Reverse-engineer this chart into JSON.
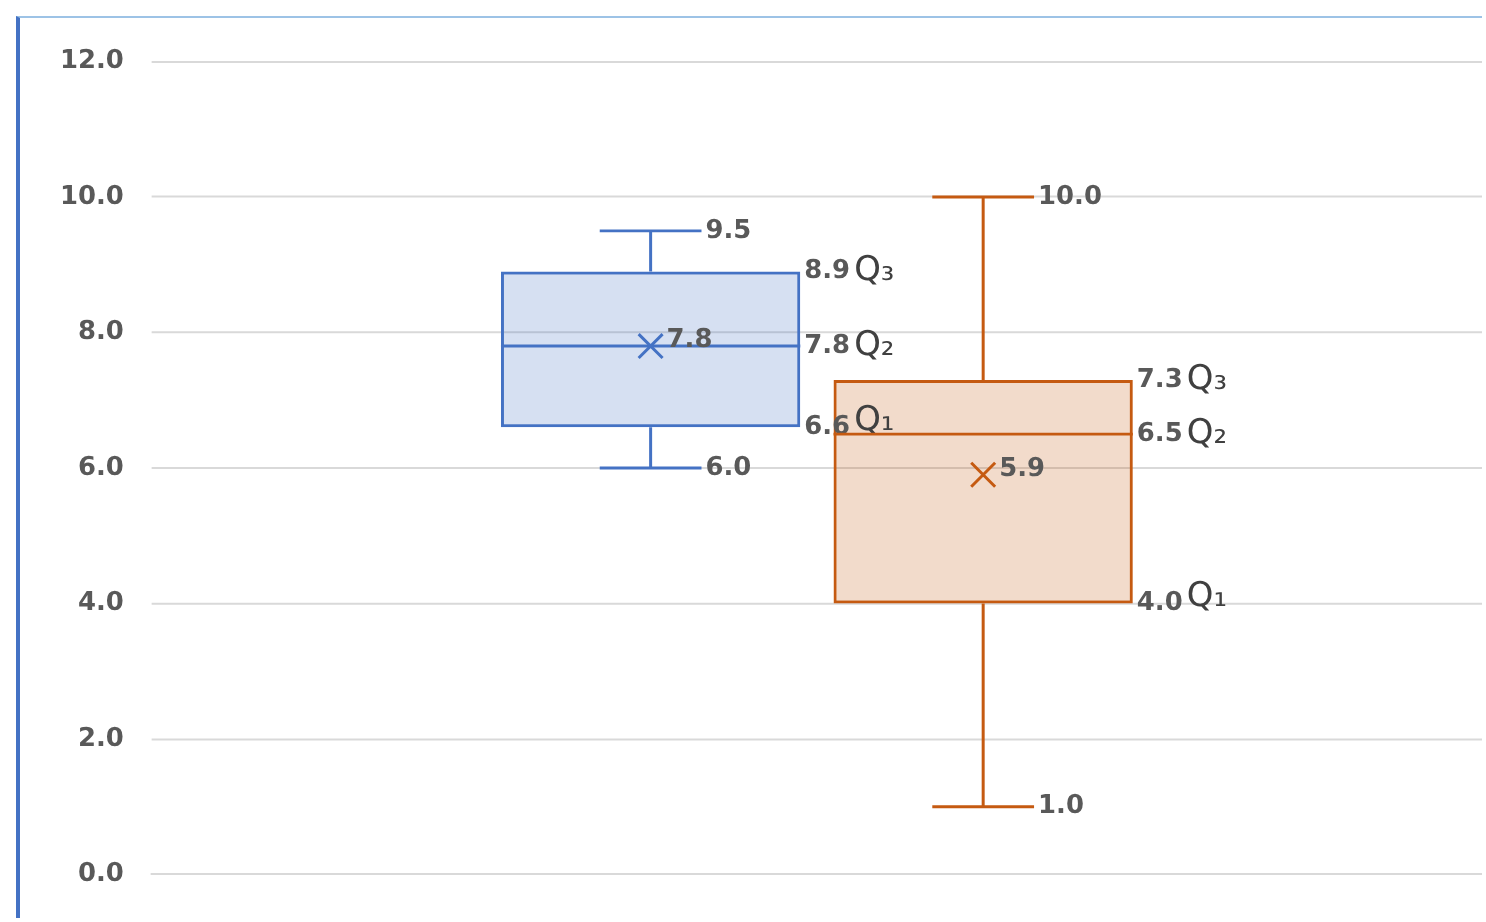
{
  "chart_data": {
    "type": "box",
    "categories": [
      null
    ],
    "series": [
      {
        "color": "#4472c4",
        "boxes": [
          {
            "low": 6.0,
            "q1": 6.6,
            "median": 7.8,
            "q3": 8.9,
            "high": 9.5,
            "mean": 7.8
          }
        ]
      },
      {
        "color": "#c55a11",
        "boxes": [
          {
            "low": 1.0,
            "q1": 4.0,
            "median": 6.5,
            "q3": 7.3,
            "high": 10.0,
            "mean": 5.9
          }
        ]
      }
    ],
    "ylim": [
      0,
      12
    ],
    "yticks": [
      {
        "value": 0,
        "label": "0.0"
      },
      {
        "value": 2,
        "label": "2.0"
      },
      {
        "value": 4,
        "label": "4.0"
      },
      {
        "value": 6,
        "label": "6.0"
      },
      {
        "value": 8,
        "label": "8.0"
      },
      {
        "value": 10,
        "label": "10.0"
      },
      {
        "value": 12,
        "label": "12.0"
      }
    ],
    "grid": "y",
    "tick_labels": "y",
    "marker": "cross",
    "annotations": [
      "9.5",
      "8.9Q₃",
      "7.8Q₂",
      "7.8",
      "6.6Q₁",
      "6.0",
      "10.0",
      "7.3Q₃",
      "6.5Q₂",
      "5.9",
      "4.0Q₁",
      "1.0"
    ]
  }
}
